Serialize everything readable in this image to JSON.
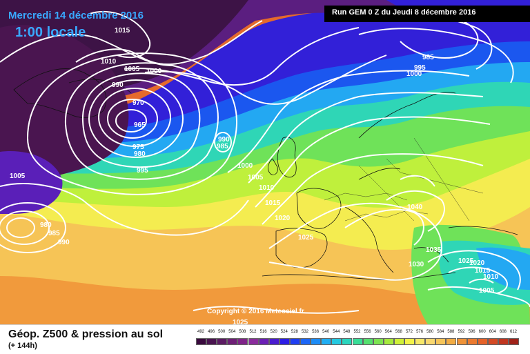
{
  "header": {
    "date": "Mercredi 14 décembre 2016",
    "time": "1:00 locale",
    "run": "Run GEM 0 Z du Jeudi 8 décembre 2016"
  },
  "footer": {
    "title": "Géop. Z500 & pression au sol",
    "subtitle": "(+ 144h)",
    "copyright": "Copyright © 2016 Meteociel.fr"
  },
  "isobar_labels": [
    "1015",
    "1010",
    "1005",
    "1000",
    "990",
    "970",
    "965",
    "975",
    "980",
    "995",
    "990",
    "985",
    "1000",
    "1005",
    "1010",
    "1015",
    "1020",
    "1025",
    "985",
    "995",
    "1000",
    "1005",
    "980",
    "985",
    "990",
    "1040",
    "1035",
    "1030",
    "1025",
    "1020",
    "1015",
    "1010",
    "1005",
    "1025"
  ],
  "scale": {
    "values": [
      "492",
      "496",
      "500",
      "504",
      "508",
      "512",
      "516",
      "520",
      "524",
      "528",
      "532",
      "536",
      "540",
      "544",
      "548",
      "552",
      "556",
      "560",
      "564",
      "568",
      "572",
      "576",
      "580",
      "584",
      "588",
      "592",
      "596",
      "600",
      "604",
      "608",
      "612"
    ],
    "colors": [
      "#3a0a3e",
      "#4a1450",
      "#5c1b63",
      "#6e1f76",
      "#7f2389",
      "#8a2c9c",
      "#6b1fb5",
      "#4a1ccf",
      "#2d1de6",
      "#1f3ef2",
      "#1c66f7",
      "#1d8cf6",
      "#20aef3",
      "#24c9e0",
      "#2ad5bd",
      "#38dd97",
      "#55e06f",
      "#7de452",
      "#a6ea3d",
      "#cff038",
      "#f3f34a",
      "#f7e86a",
      "#f9d870",
      "#f6c55a",
      "#f2ac44",
      "#ef9338",
      "#eb7a30",
      "#e56229",
      "#d44a25",
      "#c03620",
      "#a0231a"
    ]
  },
  "colors": {
    "title_blue": "#39a9ff",
    "isobar": "#ffffff"
  }
}
